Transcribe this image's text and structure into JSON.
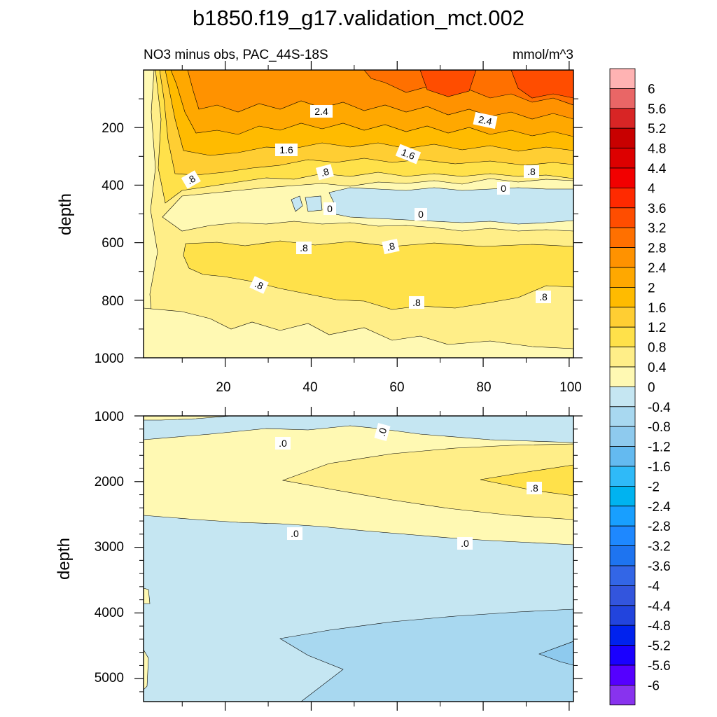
{
  "chart_data": [
    {
      "type": "heatmap",
      "subtype": "filled-contour",
      "title": "b1850.f19_g17.validation_mct.002",
      "subtitle_left": "NO3 minus obs, PAC_44S-18S",
      "subtitle_right": "mmol/m^3",
      "xlabel": "",
      "ylabel": "depth",
      "xlim": [
        1,
        101
      ],
      "ylim": [
        1000,
        0
      ],
      "x_ticks": [
        "20",
        "40",
        "60",
        "80",
        "100"
      ],
      "y_ticks": [
        "200",
        "400",
        "600",
        "800",
        "1000"
      ],
      "contour_labels": [
        "2.4",
        "2.4",
        "1.6",
        "1.6",
        ".8",
        ".8",
        ".8",
        "0",
        "0",
        "0",
        ".8",
        ".8",
        ".8",
        ".8",
        ".8"
      ],
      "bands": [
        {
          "range": [
            2.8,
            3.2
          ],
          "depth_top": 0,
          "depth_bottom": 80,
          "x_from": 60,
          "x_to": 101
        },
        {
          "range": [
            2.4,
            2.8
          ],
          "depth_top": 0,
          "depth_bottom": 150,
          "x_from": 10,
          "x_to": 101
        },
        {
          "range": [
            2.0,
            2.4
          ],
          "depth_top": 150,
          "depth_bottom": 210,
          "x_from": 8,
          "x_to": 101
        },
        {
          "range": [
            1.6,
            2.0
          ],
          "depth_top": 210,
          "depth_bottom": 270,
          "x_from": 6,
          "x_to": 101
        },
        {
          "range": [
            1.2,
            1.6
          ],
          "depth_top": 270,
          "depth_bottom": 330,
          "x_from": 5,
          "x_to": 101
        },
        {
          "range": [
            0.8,
            1.2
          ],
          "depth_top": 330,
          "depth_bottom": 370,
          "x_from": 4,
          "x_to": 101
        },
        {
          "range": [
            0.4,
            0.8
          ],
          "depth_top": 370,
          "depth_bottom": 420,
          "x_from": 2,
          "x_to": 101
        },
        {
          "range": [
            0.0,
            0.4
          ],
          "depth_top": 420,
          "depth_bottom": 520,
          "x_from": 8,
          "x_to": 101
        },
        {
          "range": [
            -0.4,
            0.0
          ],
          "depth_top": 440,
          "depth_bottom": 510,
          "x_from": 47,
          "x_to": 101
        },
        {
          "range": [
            0.8,
            1.2
          ],
          "depth_top": 610,
          "depth_bottom": 780,
          "x_from": 12,
          "x_to": 101
        }
      ]
    },
    {
      "type": "heatmap",
      "subtype": "filled-contour",
      "xlabel": "",
      "ylabel": "depth",
      "xlim": [
        1,
        101
      ],
      "ylim": [
        5350,
        1000
      ],
      "y_ticks": [
        "1000",
        "2000",
        "3000",
        "4000",
        "5000"
      ],
      "contour_labels": [
        ".0",
        ".0",
        ".8",
        ".0",
        ".0"
      ],
      "bands": [
        {
          "range": [
            -0.4,
            0.0
          ],
          "depth_top": 1000,
          "depth_bottom": 1400,
          "x_from": 1,
          "x_to": 101
        },
        {
          "range": [
            0.0,
            0.4
          ],
          "depth_top": 1350,
          "depth_bottom": 2950,
          "x_from": 1,
          "x_to": 101
        },
        {
          "range": [
            0.4,
            0.8
          ],
          "depth_top": 1450,
          "depth_bottom": 2600,
          "x_from": 33,
          "x_to": 101
        },
        {
          "range": [
            0.8,
            1.2
          ],
          "depth_top": 1750,
          "depth_bottom": 2250,
          "x_from": 81,
          "x_to": 101
        },
        {
          "range": [
            -0.4,
            0.0
          ],
          "depth_top": 2550,
          "depth_bottom": 5350,
          "x_from": 1,
          "x_to": 101
        },
        {
          "range": [
            -0.8,
            -0.4
          ],
          "depth_top": 4000,
          "depth_bottom": 5350,
          "x_from": 33,
          "x_to": 101
        },
        {
          "range": [
            -1.2,
            -0.8
          ],
          "depth_top": 4600,
          "depth_bottom": 5350,
          "x_from": 93,
          "x_to": 101
        }
      ]
    }
  ],
  "colorbar": {
    "labels": [
      "6",
      "5.6",
      "5.2",
      "4.8",
      "4.4",
      "4",
      "3.6",
      "3.2",
      "2.8",
      "2.4",
      "2",
      "1.6",
      "1.2",
      "0.8",
      "0.4",
      "0",
      "-0.4",
      "-0.8",
      "-1.2",
      "-1.6",
      "-2",
      "-2.4",
      "-2.8",
      "-3.2",
      "-3.6",
      "-4",
      "-4.4",
      "-4.8",
      "-5.2",
      "-5.6",
      "-6"
    ],
    "colors": [
      "#FFB3B3",
      "#E96666",
      "#D82525",
      "#C80000",
      "#DD0000",
      "#F20000",
      "#FF2A00",
      "#FF4D00",
      "#FF7000",
      "#FF9200",
      "#FFA800",
      "#FFBB00",
      "#FFCE33",
      "#FFE14A",
      "#FFEE88",
      "#FFF9B3",
      "#C5E6F2",
      "#A8D8F0",
      "#8ECAEE",
      "#64BAF0",
      "#2FBAF8",
      "#00B3F0",
      "#189FFF",
      "#1E88FF",
      "#1E74F0",
      "#3366E6",
      "#3355DD",
      "#2244DD",
      "#0022EE",
      "#1A00FF",
      "#5500FF",
      "#8833EE"
    ]
  }
}
